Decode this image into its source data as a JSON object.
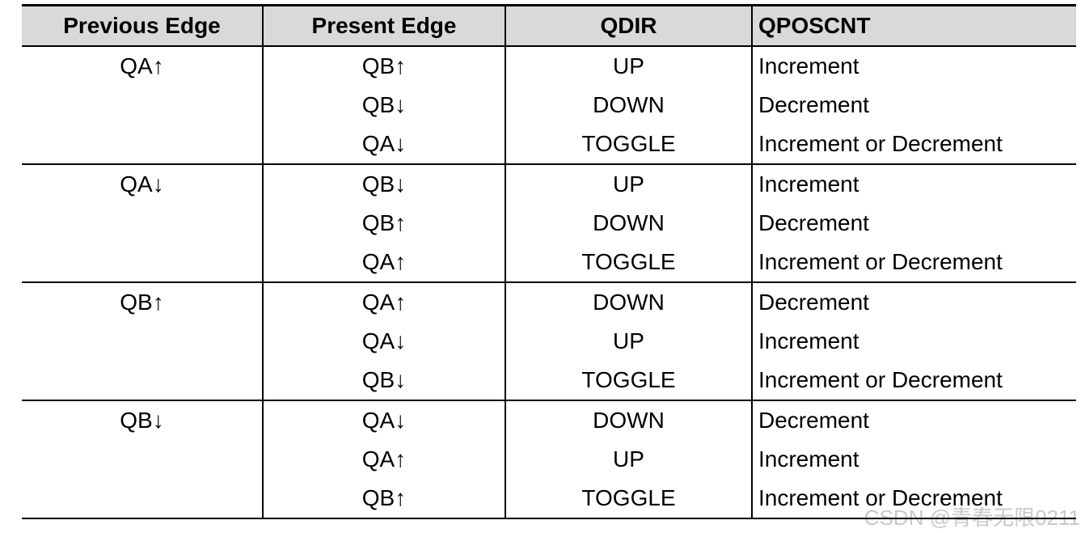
{
  "table": {
    "header_bg": "#d9d9d9",
    "border_color": "#000000",
    "columns": [
      "Previous Edge",
      "Present Edge",
      "QDIR",
      "QPOSCNT"
    ],
    "groups": [
      {
        "previous_edge": "QA↑",
        "rows": [
          {
            "present_edge": "QB↑",
            "qdir": "UP",
            "qposcnt": "Increment"
          },
          {
            "present_edge": "QB↓",
            "qdir": "DOWN",
            "qposcnt": "Decrement"
          },
          {
            "present_edge": "QA↓",
            "qdir": "TOGGLE",
            "qposcnt": "Increment or Decrement"
          }
        ]
      },
      {
        "previous_edge": "QA↓",
        "rows": [
          {
            "present_edge": "QB↓",
            "qdir": "UP",
            "qposcnt": "Increment"
          },
          {
            "present_edge": "QB↑",
            "qdir": "DOWN",
            "qposcnt": "Decrement"
          },
          {
            "present_edge": "QA↑",
            "qdir": "TOGGLE",
            "qposcnt": "Increment or Decrement"
          }
        ]
      },
      {
        "previous_edge": "QB↑",
        "rows": [
          {
            "present_edge": "QA↑",
            "qdir": "DOWN",
            "qposcnt": "Decrement"
          },
          {
            "present_edge": "QA↓",
            "qdir": "UP",
            "qposcnt": "Increment"
          },
          {
            "present_edge": "QB↓",
            "qdir": "TOGGLE",
            "qposcnt": "Increment or Decrement"
          }
        ]
      },
      {
        "previous_edge": "QB↓",
        "rows": [
          {
            "present_edge": "QA↓",
            "qdir": "DOWN",
            "qposcnt": "Decrement"
          },
          {
            "present_edge": "QA↑",
            "qdir": "UP",
            "qposcnt": "Increment"
          },
          {
            "present_edge": "QB↑",
            "qdir": "TOGGLE",
            "qposcnt": "Increment or Decrement"
          }
        ]
      }
    ]
  },
  "watermark": {
    "text": "CSDN @青春无限0211",
    "color": "#c9c9c9"
  }
}
